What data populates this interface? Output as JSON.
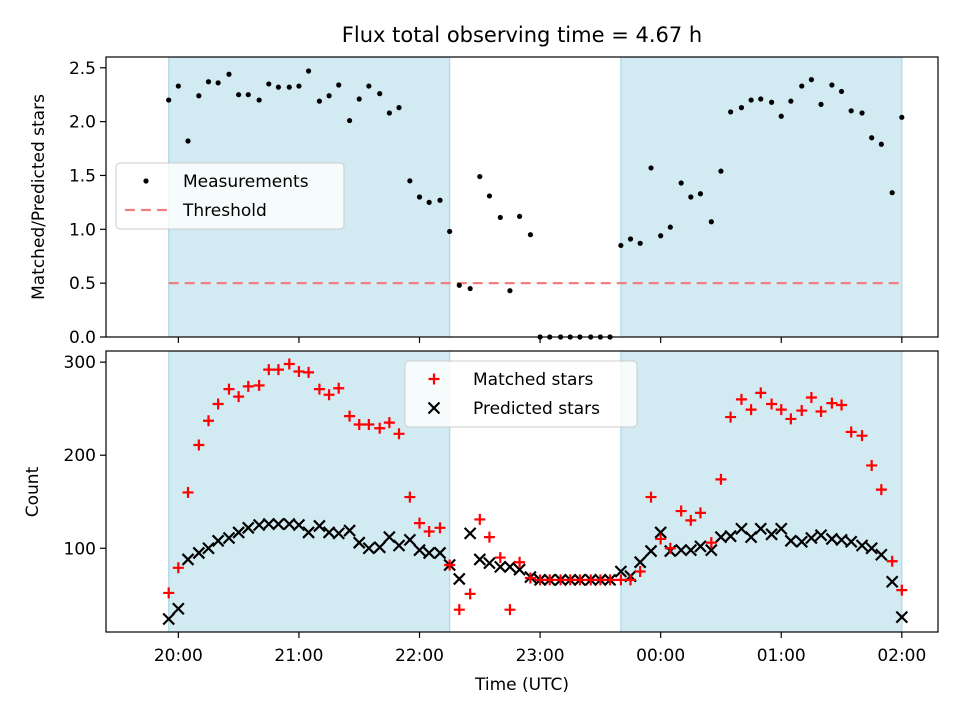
{
  "title": "Flux total observing time = 4.67 h",
  "xlabel": "Time (UTC)",
  "x_ticks": [
    "20:00",
    "21:00",
    "22:00",
    "23:00",
    "00:00",
    "01:00",
    "02:00"
  ],
  "x_tick_hours": [
    20,
    21,
    22,
    23,
    24,
    25,
    26
  ],
  "x_range_hours": [
    19.4,
    26.3
  ],
  "shaded_intervals_hours": [
    [
      19.92,
      22.25
    ],
    [
      23.67,
      26.0
    ]
  ],
  "colors": {
    "shade": "#add8e6",
    "measurements": "#000000",
    "threshold": "#f08080",
    "matched": "#ff0000",
    "predicted": "#000000"
  },
  "chart_data": [
    {
      "type": "scatter",
      "ylabel": "Matched/Predicted stars",
      "ylim": [
        0,
        2.6
      ],
      "yticks": [
        "0.0",
        "0.5",
        "1.0",
        "1.5",
        "2.0",
        "2.5"
      ],
      "grid": false,
      "legend_placement": "center-left",
      "threshold": 0.5,
      "series": [
        {
          "name": "Measurements",
          "x_hours": [
            19.92,
            20.0,
            20.08,
            20.17,
            20.25,
            20.33,
            20.42,
            20.5,
            20.58,
            20.67,
            20.75,
            20.83,
            20.92,
            21.0,
            21.08,
            21.17,
            21.25,
            21.33,
            21.42,
            21.5,
            21.58,
            21.67,
            21.75,
            21.83,
            21.92,
            22.0,
            22.08,
            22.17,
            22.25,
            22.33,
            22.42,
            22.5,
            22.58,
            22.67,
            22.75,
            22.83,
            22.92,
            23.0,
            23.08,
            23.17,
            23.25,
            23.33,
            23.42,
            23.5,
            23.58,
            23.67,
            23.75,
            23.83,
            23.92,
            24.0,
            24.08,
            24.17,
            24.25,
            24.33,
            24.42,
            24.5,
            24.58,
            24.67,
            24.75,
            24.83,
            24.92,
            25.0,
            25.08,
            25.17,
            25.25,
            25.33,
            25.42,
            25.5,
            25.58,
            25.67,
            25.75,
            25.83,
            25.92,
            26.0
          ],
          "values": [
            2.2,
            2.33,
            1.82,
            2.24,
            2.37,
            2.36,
            2.44,
            2.25,
            2.25,
            2.2,
            2.35,
            2.32,
            2.32,
            2.33,
            2.47,
            2.19,
            2.24,
            2.34,
            2.01,
            2.21,
            2.33,
            2.26,
            2.08,
            2.13,
            1.45,
            1.3,
            1.25,
            1.27,
            0.98,
            0.48,
            0.45,
            1.49,
            1.31,
            1.11,
            0.43,
            1.12,
            0.95,
            0.0,
            0.0,
            0.0,
            0.0,
            0.0,
            0.0,
            0.0,
            0.0,
            0.85,
            0.91,
            0.87,
            1.57,
            0.94,
            1.02,
            1.43,
            1.3,
            1.33,
            1.07,
            1.54,
            2.09,
            2.13,
            2.2,
            2.21,
            2.18,
            2.05,
            2.19,
            2.33,
            2.39,
            2.16,
            2.34,
            2.28,
            2.1,
            2.08,
            1.85,
            1.79,
            1.34,
            2.04
          ]
        },
        {
          "name": "Threshold",
          "values": [
            0.5
          ]
        }
      ]
    },
    {
      "type": "scatter",
      "ylabel": "Count",
      "ylim": [
        10,
        312
      ],
      "yticks": [
        "100",
        "200",
        "300"
      ],
      "grid": false,
      "legend_placement": "upper-center",
      "series": [
        {
          "name": "Matched stars",
          "x_hours": [
            19.92,
            20.0,
            20.08,
            20.17,
            20.25,
            20.33,
            20.42,
            20.5,
            20.58,
            20.67,
            20.75,
            20.83,
            20.92,
            21.0,
            21.08,
            21.17,
            21.25,
            21.33,
            21.42,
            21.5,
            21.58,
            21.67,
            21.75,
            21.83,
            21.92,
            22.0,
            22.08,
            22.17,
            22.25,
            22.33,
            22.42,
            22.5,
            22.58,
            22.67,
            22.75,
            22.83,
            22.92,
            23.0,
            23.08,
            23.17,
            23.25,
            23.33,
            23.42,
            23.5,
            23.58,
            23.67,
            23.75,
            23.83,
            23.92,
            24.0,
            24.08,
            24.17,
            24.25,
            24.33,
            24.42,
            24.5,
            24.58,
            24.67,
            24.75,
            24.83,
            24.92,
            25.0,
            25.08,
            25.17,
            25.25,
            25.33,
            25.42,
            25.5,
            25.58,
            25.67,
            25.75,
            25.83,
            25.92,
            26.0
          ],
          "values": [
            52,
            79,
            160,
            211,
            237,
            255,
            271,
            263,
            274,
            275,
            292,
            292,
            298,
            290,
            289,
            271,
            265,
            272,
            242,
            233,
            233,
            229,
            235,
            223,
            155,
            127,
            118,
            122,
            82,
            34,
            51,
            131,
            112,
            90,
            34,
            85,
            68,
            66,
            66,
            66,
            66,
            66,
            66,
            66,
            66,
            66,
            66,
            75,
            155,
            110,
            100,
            140,
            130,
            138,
            106,
            174,
            241,
            260,
            249,
            267,
            255,
            249,
            239,
            248,
            262,
            247,
            256,
            254,
            225,
            221,
            189,
            163,
            86,
            55
          ]
        },
        {
          "name": "Predicted stars",
          "x_hours": [
            19.92,
            20.0,
            20.08,
            20.17,
            20.25,
            20.33,
            20.42,
            20.5,
            20.58,
            20.67,
            20.75,
            20.83,
            20.92,
            21.0,
            21.08,
            21.17,
            21.25,
            21.33,
            21.42,
            21.5,
            21.58,
            21.67,
            21.75,
            21.83,
            21.92,
            22.0,
            22.08,
            22.17,
            22.25,
            22.33,
            22.42,
            22.5,
            22.58,
            22.67,
            22.75,
            22.83,
            22.92,
            23.0,
            23.08,
            23.17,
            23.25,
            23.33,
            23.42,
            23.5,
            23.58,
            23.67,
            23.75,
            23.83,
            23.92,
            24.0,
            24.08,
            24.17,
            24.25,
            24.33,
            24.42,
            24.5,
            24.58,
            24.67,
            24.75,
            24.83,
            24.92,
            25.0,
            25.08,
            25.17,
            25.25,
            25.33,
            25.42,
            25.5,
            25.58,
            25.67,
            25.75,
            25.83,
            25.92,
            26.0
          ],
          "values": [
            24,
            35,
            88,
            95,
            100,
            108,
            111,
            117,
            122,
            125,
            126,
            126,
            126,
            125,
            117,
            124,
            117,
            116,
            119,
            106,
            100,
            101,
            112,
            103,
            109,
            98,
            95,
            95,
            82,
            67,
            116,
            88,
            84,
            80,
            80,
            77,
            69,
            66,
            66,
            66,
            66,
            66,
            66,
            66,
            66,
            75,
            70,
            85,
            97,
            117,
            97,
            98,
            98,
            102,
            98,
            112,
            113,
            121,
            112,
            121,
            115,
            121,
            108,
            107,
            111,
            114,
            110,
            109,
            107,
            103,
            100,
            93,
            64,
            26
          ]
        }
      ]
    }
  ]
}
